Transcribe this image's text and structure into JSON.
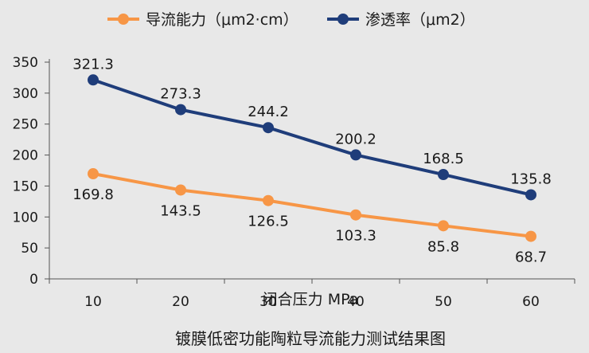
{
  "chart_data": {
    "type": "line",
    "title": "镀膜低密功能陶粒导流能力测试结果图",
    "xlabel": "闭合压力 MPa",
    "ylabel": "",
    "x": [
      10,
      20,
      30,
      40,
      50,
      60
    ],
    "ylim": [
      0,
      350
    ],
    "yticks": [
      0,
      50,
      100,
      150,
      200,
      250,
      300,
      350
    ],
    "grid": false,
    "legend_position": "top",
    "series": [
      {
        "name": "导流能力（μm2·cm）",
        "color": "#f79646",
        "values": [
          169.8,
          143.5,
          126.5,
          103.3,
          85.8,
          68.7
        ],
        "label_position": "below"
      },
      {
        "name": "渗透率（μm2）",
        "color": "#1f3d7a",
        "values": [
          321.3,
          273.3,
          244.2,
          200.2,
          168.5,
          135.8
        ],
        "label_position": "above"
      }
    ]
  }
}
